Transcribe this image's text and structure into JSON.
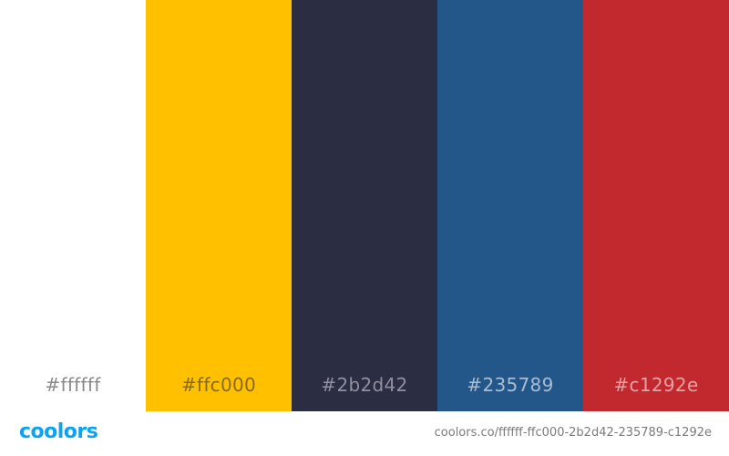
{
  "palette": {
    "swatches": [
      {
        "hex": "#ffffff",
        "label": "#ffffff",
        "label_color": "#8a8a8a"
      },
      {
        "hex": "#ffc000",
        "label": "#ffc000",
        "label_color": "#8a6a10"
      },
      {
        "hex": "#2b2d42",
        "label": "#2b2d42",
        "label_color": "#8f90a0"
      },
      {
        "hex": "#235789",
        "label": "#235789",
        "label_color": "#a8bcd3"
      },
      {
        "hex": "#c1292e",
        "label": "#c1292e",
        "label_color": "#e7a0a3"
      }
    ]
  },
  "footer": {
    "logo": "coolors",
    "logo_color": "#0ba4f3",
    "url": "coolors.co/ffffff-ffc000-2b2d42-235789-c1292e"
  }
}
